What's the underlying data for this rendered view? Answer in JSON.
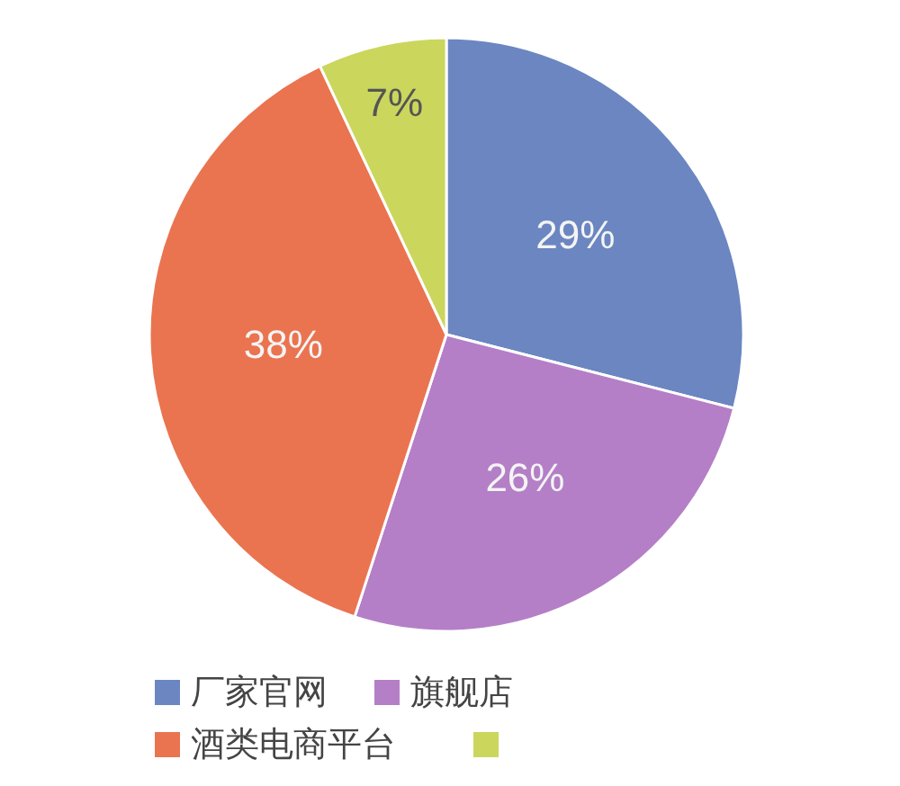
{
  "chart_data": {
    "type": "pie",
    "categories": [
      "厂家官网",
      "旗舰店",
      "酒类电商平台",
      null
    ],
    "values": [
      29,
      26,
      38,
      7
    ],
    "colors": [
      "#6b86c1",
      "#b47fc7",
      "#ea7450",
      "#cbd65c"
    ],
    "value_labels": [
      "29%",
      "26%",
      "38%",
      "7%"
    ],
    "legend": "bottom"
  }
}
